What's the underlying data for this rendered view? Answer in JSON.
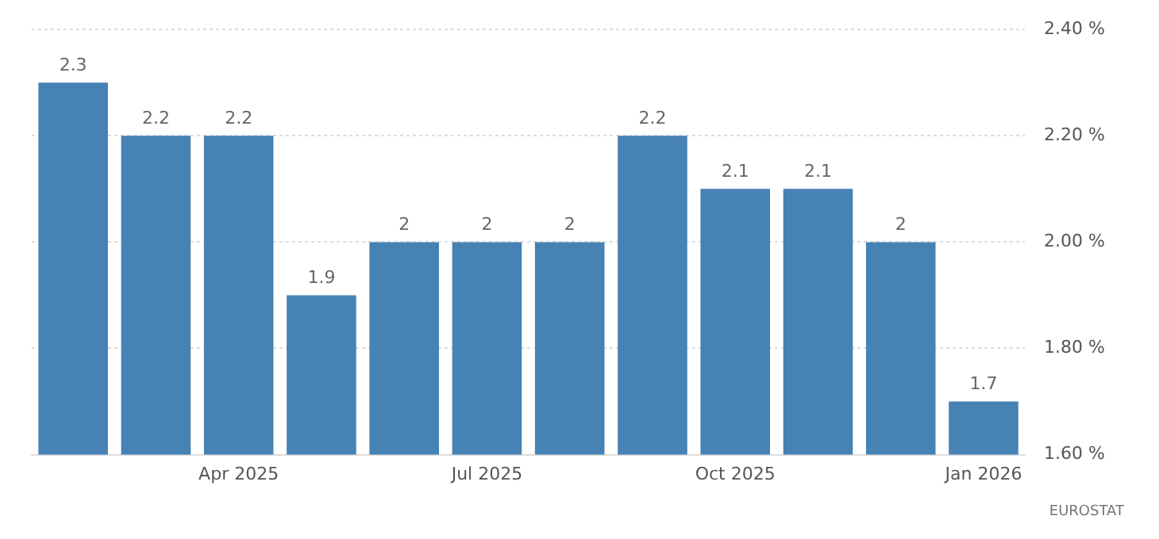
{
  "chart_data": {
    "type": "bar",
    "categories": [
      null,
      null,
      "Apr 2025",
      null,
      null,
      "Jul 2025",
      null,
      null,
      "Oct 2025",
      null,
      null,
      "Jan 2026"
    ],
    "values": [
      2.3,
      2.2,
      2.2,
      1.9,
      2,
      2,
      2,
      2.2,
      2.1,
      2.1,
      2,
      1.7
    ],
    "color": "#4682b4",
    "ylim": [
      1.6,
      2.4
    ],
    "yticks": [
      {
        "value": 1.6,
        "label": "1.60 %"
      },
      {
        "value": 1.8,
        "label": "1.80 %"
      },
      {
        "value": 2.0,
        "label": "2.00 %"
      },
      {
        "value": 2.2,
        "label": "2.20 %"
      },
      {
        "value": 2.4,
        "label": "2.40 %"
      }
    ],
    "grid": "y",
    "legend": false,
    "data_labels": true,
    "annotations": [
      "EUROSTAT"
    ]
  }
}
